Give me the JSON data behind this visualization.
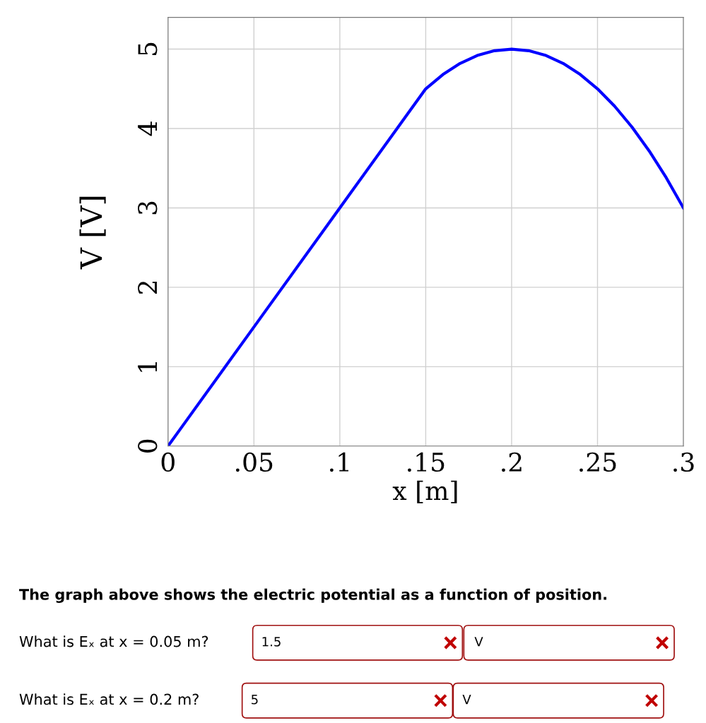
{
  "chart_data": {
    "type": "line",
    "xlabel": "x [m]",
    "ylabel": "V [V]",
    "x": [
      0,
      0.05,
      0.1,
      0.15,
      0.16,
      0.17,
      0.18,
      0.19,
      0.2,
      0.21,
      0.22,
      0.23,
      0.24,
      0.25,
      0.26,
      0.27,
      0.28,
      0.29,
      0.3
    ],
    "series": [
      {
        "color": "#0000ff",
        "values": [
          0,
          1.5,
          3,
          4.5,
          4.68,
          4.82,
          4.92,
          4.98,
          5,
          4.98,
          4.92,
          4.82,
          4.68,
          4.5,
          4.28,
          4.02,
          3.72,
          3.38,
          3
        ]
      }
    ],
    "xlim": [
      0,
      0.3
    ],
    "ylim": [
      0,
      5.4
    ],
    "xticks": [
      0,
      {
        "value": 0.05,
        "label": ".05"
      },
      {
        "value": 0.1,
        "label": ".1"
      },
      {
        "value": 0.15,
        "label": ".15"
      },
      {
        "value": 0.2,
        "label": ".2"
      },
      {
        "value": 0.25,
        "label": ".25"
      },
      {
        "value": 0.3,
        "label": ".3"
      }
    ],
    "yticks": [
      0,
      1,
      2,
      3,
      4,
      5
    ],
    "grid": true,
    "marker": "none",
    "line_style": "solid",
    "annotations": [
      "The graph above shows the electric potential as a function of position.",
      "What is Eₓ at x = 0.05 m?",
      "1.5",
      "V",
      "What is Eₓ at x = 0.2 m?",
      "5",
      "V"
    ]
  }
}
